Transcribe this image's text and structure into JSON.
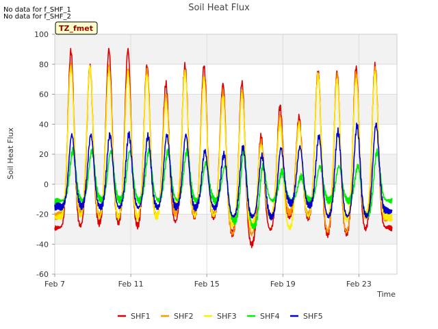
{
  "notes": [
    "No data for f_SHF_1",
    "No data for f_SHF_2"
  ],
  "chart_data": {
    "type": "line",
    "title": "Soil Heat Flux",
    "xlabel": "Time",
    "ylabel": "Soil Heat Flux",
    "badge": "TZ_fmet",
    "xlim": [
      7,
      25
    ],
    "ylim": [
      -60,
      100
    ],
    "xticks": [
      7,
      11,
      15,
      19,
      23
    ],
    "xtick_labels": [
      "Feb 7",
      "Feb 11",
      "Feb 15",
      "Feb 19",
      "Feb 23"
    ],
    "yticks": [
      -60,
      -40,
      -20,
      0,
      20,
      40,
      60,
      80,
      100
    ],
    "ytick_labels": [
      "-60",
      "-40",
      "-20",
      "0",
      "20",
      "40",
      "60",
      "80",
      "100"
    ],
    "grid": true,
    "legend_position": "bottom",
    "colors": {
      "SHF1": "#dd0000",
      "SHF2": "#ff9900",
      "SHF3": "#ffee00",
      "SHF4": "#00ee00",
      "SHF5": "#0000cc"
    },
    "series": [
      {
        "name": "SHF1",
        "peak_day": [
          7.85,
          8.85,
          9.85,
          10.85,
          11.85,
          12.85,
          13.85,
          14.85,
          15.85,
          16.85,
          17.85,
          18.85,
          19.85,
          20.85,
          21.85,
          22.85,
          23.85
        ],
        "peak": [
          89,
          79,
          90,
          90,
          79,
          67,
          79,
          79,
          67,
          68,
          32,
          52,
          45,
          76,
          75,
          78,
          79
        ],
        "trough": [
          -29,
          -27,
          -26,
          -29,
          -23,
          -26,
          -23,
          -23,
          -34,
          -41,
          -31,
          -23,
          -23,
          -34,
          -34,
          -31,
          -29
        ]
      },
      {
        "name": "SHF2",
        "peak_day": [
          7.85,
          8.85,
          9.85,
          10.85,
          11.85,
          12.85,
          13.85,
          14.85,
          15.85,
          16.85,
          17.85,
          18.85,
          19.85,
          20.85,
          21.85,
          22.85,
          23.85
        ],
        "peak": [
          80,
          79,
          78,
          76,
          76,
          60,
          76,
          72,
          62,
          62,
          28,
          46,
          42,
          74,
          72,
          74,
          77
        ],
        "trough": [
          -21,
          -22,
          -22,
          -22,
          -22,
          -20,
          -21,
          -21,
          -34,
          -34,
          -22,
          -20,
          -21,
          -32,
          -33,
          -23,
          -23
        ]
      },
      {
        "name": "SHF3",
        "peak_day": [
          7.85,
          8.85,
          9.85,
          10.85,
          11.85,
          12.85,
          13.85,
          14.85,
          15.85,
          16.85,
          17.85,
          18.85,
          19.85,
          20.85,
          21.85,
          22.85,
          23.85
        ],
        "peak": [
          78,
          78,
          76,
          74,
          73,
          55,
          74,
          70,
          58,
          60,
          26,
          40,
          40,
          72,
          70,
          70,
          75
        ],
        "trough": [
          -22,
          -23,
          -23,
          -23,
          -23,
          -14,
          -22,
          -22,
          -28,
          -28,
          -22,
          -30,
          -22,
          -22,
          -24,
          -22,
          -22
        ]
      },
      {
        "name": "SHF4",
        "peak_day": [
          7.95,
          8.95,
          9.95,
          10.95,
          11.95,
          12.95,
          13.95,
          14.95,
          15.95,
          16.95,
          17.95,
          18.95,
          19.95,
          20.95,
          21.95,
          22.95,
          23.95
        ],
        "peak": [
          22,
          22,
          22,
          22,
          22,
          22,
          22,
          14,
          12,
          22,
          12,
          8,
          5,
          12,
          12,
          12,
          22
        ],
        "trough": [
          -11,
          -11,
          -11,
          -11,
          -11,
          -11,
          -11,
          -11,
          -25,
          -29,
          -11,
          -11,
          -11,
          -11,
          -11,
          -21,
          -11
        ]
      },
      {
        "name": "SHF5",
        "peak_day": [
          7.9,
          8.9,
          9.9,
          10.9,
          11.9,
          12.9,
          13.9,
          14.9,
          15.9,
          16.9,
          17.9,
          18.9,
          19.9,
          20.9,
          21.9,
          22.9,
          23.9
        ],
        "peak": [
          33,
          33,
          33,
          33,
          32,
          33,
          33,
          22,
          20,
          25,
          19,
          24,
          25,
          32,
          35,
          39,
          40
        ],
        "trough": [
          -15,
          -16,
          -16,
          -16,
          -16,
          -16,
          -16,
          -16,
          -22,
          -22,
          -22,
          -13,
          -15,
          -22,
          -22,
          -22,
          -18
        ]
      }
    ]
  }
}
